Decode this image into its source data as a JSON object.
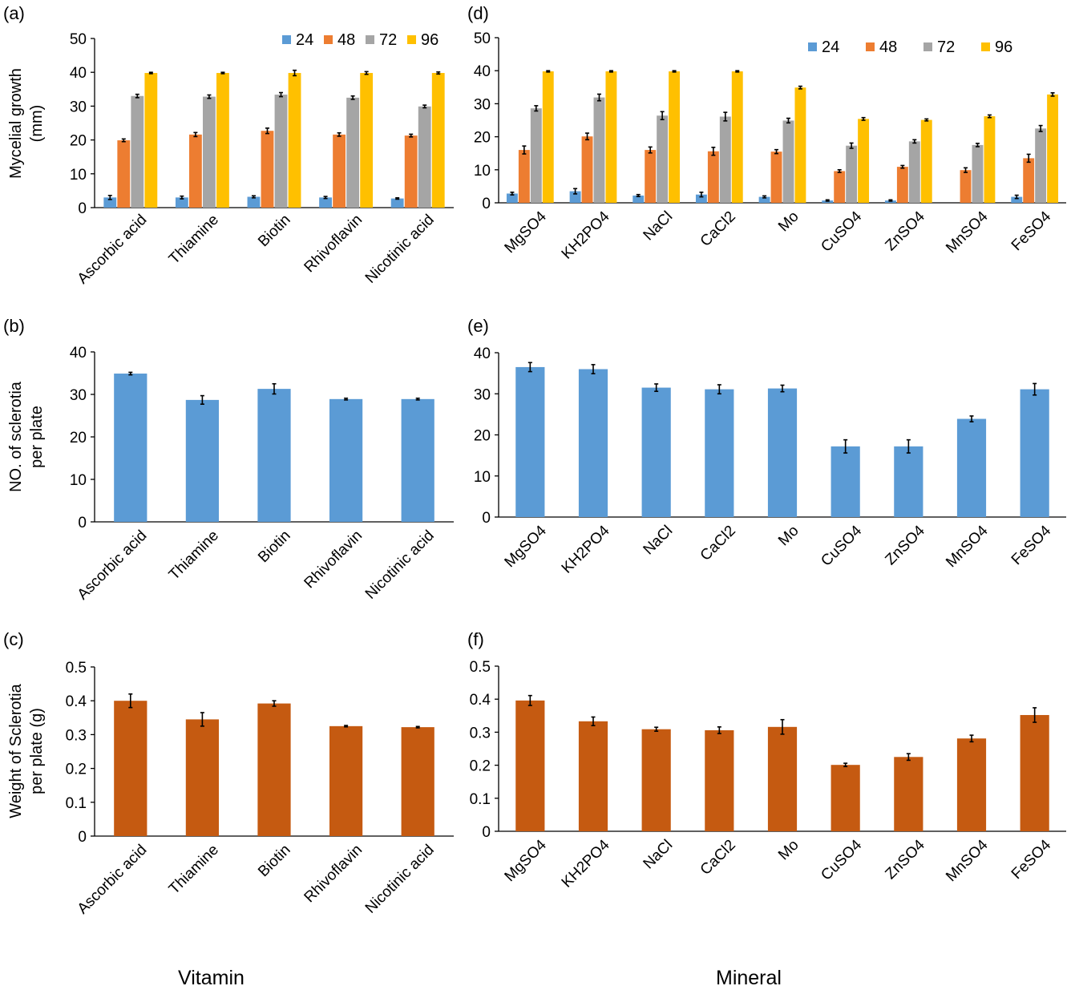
{
  "panels": {
    "a": "(a)",
    "b": "(b)",
    "c": "(c)",
    "d": "(d)",
    "e": "(e)",
    "f": "(f)"
  },
  "footer": {
    "vitamin": "Vitamin",
    "mineral": "Mineral"
  },
  "colors": {
    "h24": "#5b9bd5",
    "h48": "#ed7d31",
    "h72": "#a5a5a5",
    "h96": "#ffc000",
    "sclerotia_count": "#5b9bd5",
    "sclerotia_weight": "#c55a11"
  },
  "chart_data": [
    {
      "id": "a",
      "type": "bar",
      "categories": [
        "Ascorbic acid",
        "Thiamine",
        "Biotin",
        "Rhivoflavin",
        "Nicotinic acid"
      ],
      "series": [
        {
          "name": "24",
          "values": [
            3.0,
            3.0,
            3.2,
            3.0,
            2.7
          ],
          "errors": [
            0.6,
            0.4,
            0.3,
            0.3,
            0.2
          ]
        },
        {
          "name": "48",
          "values": [
            19.9,
            21.6,
            22.7,
            21.6,
            21.3
          ],
          "errors": [
            0.4,
            0.6,
            0.8,
            0.5,
            0.4
          ]
        },
        {
          "name": "72",
          "values": [
            33.0,
            32.8,
            33.4,
            32.5,
            29.9
          ],
          "errors": [
            0.5,
            0.5,
            0.6,
            0.5,
            0.4
          ]
        },
        {
          "name": "96",
          "values": [
            39.8,
            39.8,
            39.8,
            39.8,
            39.8
          ],
          "errors": [
            0.2,
            0.2,
            0.8,
            0.4,
            0.3
          ]
        }
      ],
      "ylabel": "Mycelial growth (mm)",
      "ylim": [
        0,
        50
      ],
      "yticks": [
        0,
        10,
        20,
        30,
        40,
        50
      ],
      "legend": "top-right",
      "grid": false
    },
    {
      "id": "b",
      "type": "bar",
      "categories": [
        "Ascorbic acid",
        "Thiamine",
        "Biotin",
        "Rhivoflavin",
        "Nicotinic acid"
      ],
      "values": [
        34.9,
        28.7,
        31.3,
        28.9,
        28.9
      ],
      "errors": [
        0.3,
        1.0,
        1.2,
        0.2,
        0.2
      ],
      "ylabel": "NO. of sclerotia per plate",
      "ylim": [
        0,
        40
      ],
      "yticks": [
        0,
        10,
        20,
        30,
        40
      ],
      "grid": false
    },
    {
      "id": "c",
      "type": "bar",
      "categories": [
        "Ascorbic acid",
        "Thiamine",
        "Biotin",
        "Rhivoflavin",
        "Nicotinic acid"
      ],
      "values": [
        0.4,
        0.345,
        0.392,
        0.325,
        0.322
      ],
      "errors": [
        0.02,
        0.02,
        0.008,
        0.002,
        0.002
      ],
      "ylabel": "Weight of Sclerotia per plate (g)",
      "ylim": [
        0,
        0.5
      ],
      "yticks": [
        0,
        0.1,
        0.2,
        0.3,
        0.4,
        0.5
      ],
      "grid": false
    },
    {
      "id": "d",
      "type": "bar",
      "categories": [
        "MgSO4",
        "KH2PO4",
        "NaCl",
        "CaCl2",
        "Mo",
        "CuSO4",
        "ZnSO4",
        "MnSO4",
        "FeSO4"
      ],
      "series": [
        {
          "name": "24",
          "values": [
            2.8,
            3.5,
            2.2,
            2.5,
            1.8,
            0.7,
            0.7,
            0.0,
            1.8
          ],
          "errors": [
            0.4,
            0.8,
            0.3,
            0.7,
            0.3,
            0.2,
            0.2,
            0.0,
            0.5
          ]
        },
        {
          "name": "48",
          "values": [
            16.0,
            20.1,
            16.0,
            15.6,
            15.5,
            9.6,
            10.9,
            9.9,
            13.5
          ],
          "errors": [
            1.2,
            1.0,
            0.9,
            1.2,
            0.6,
            0.4,
            0.4,
            0.7,
            1.2
          ]
        },
        {
          "name": "72",
          "values": [
            28.6,
            31.9,
            26.4,
            26.1,
            24.9,
            17.3,
            18.6,
            17.5,
            22.5
          ],
          "errors": [
            0.8,
            1.0,
            1.2,
            1.3,
            0.7,
            0.8,
            0.5,
            0.5,
            0.9
          ]
        },
        {
          "name": "96",
          "values": [
            39.8,
            39.8,
            39.8,
            39.8,
            34.9,
            25.4,
            25.1,
            26.2,
            32.8
          ],
          "errors": [
            0.2,
            0.2,
            0.2,
            0.2,
            0.4,
            0.4,
            0.3,
            0.4,
            0.5
          ]
        }
      ],
      "ylim": [
        0,
        50
      ],
      "yticks": [
        0,
        10,
        20,
        30,
        40,
        50
      ],
      "legend": "top-right",
      "grid": false
    },
    {
      "id": "e",
      "type": "bar",
      "categories": [
        "MgSO4",
        "KH2PO4",
        "NaCl",
        "CaCl2",
        "Mo",
        "CuSO4",
        "ZnSO4",
        "MnSO4",
        "FeSO4"
      ],
      "values": [
        36.5,
        36.0,
        31.5,
        31.1,
        31.3,
        17.2,
        17.2,
        23.9,
        31.1
      ],
      "errors": [
        1.1,
        1.1,
        0.9,
        1.1,
        0.8,
        1.6,
        1.6,
        0.7,
        1.4
      ],
      "ylim": [
        0,
        40
      ],
      "yticks": [
        0,
        10,
        20,
        30,
        40
      ],
      "grid": false
    },
    {
      "id": "f",
      "type": "bar",
      "categories": [
        "MgSO4",
        "KH2PO4",
        "NaCl",
        "CaCl2",
        "Mo",
        "CuSO4",
        "ZnSO4",
        "MnSO4",
        "FeSO4"
      ],
      "values": [
        0.396,
        0.333,
        0.309,
        0.306,
        0.316,
        0.201,
        0.225,
        0.281,
        0.352
      ],
      "errors": [
        0.015,
        0.013,
        0.006,
        0.01,
        0.022,
        0.005,
        0.01,
        0.01,
        0.022
      ],
      "ylim": [
        0,
        0.5
      ],
      "yticks": [
        0,
        0.1,
        0.2,
        0.3,
        0.4,
        0.5
      ],
      "grid": false
    }
  ]
}
